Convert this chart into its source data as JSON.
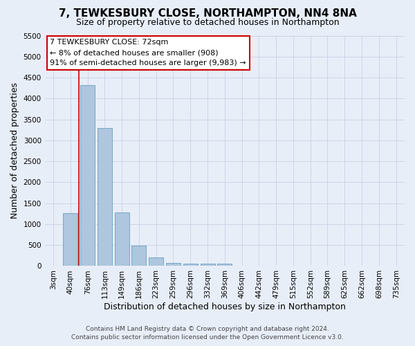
{
  "title": "7, TEWKESBURY CLOSE, NORTHAMPTON, NN4 8NA",
  "subtitle": "Size of property relative to detached houses in Northampton",
  "xlabel": "Distribution of detached houses by size in Northampton",
  "ylabel": "Number of detached properties",
  "categories": [
    "3sqm",
    "40sqm",
    "76sqm",
    "113sqm",
    "149sqm",
    "186sqm",
    "223sqm",
    "259sqm",
    "296sqm",
    "332sqm",
    "369sqm",
    "406sqm",
    "442sqm",
    "479sqm",
    "515sqm",
    "552sqm",
    "589sqm",
    "625sqm",
    "662sqm",
    "698sqm",
    "735sqm"
  ],
  "bar_values": [
    0,
    1270,
    4320,
    3290,
    1280,
    490,
    210,
    80,
    60,
    50,
    60,
    0,
    0,
    0,
    0,
    0,
    0,
    0,
    0,
    0,
    0
  ],
  "bar_color": "#aec6de",
  "bar_edge_color": "#6a9fc0",
  "grid_color": "#ccd6e8",
  "background_color": "#e8eef8",
  "annotation_box_color": "#ffffff",
  "annotation_border_color": "#cc0000",
  "property_line_color": "#cc0000",
  "property_line_x": 1.5,
  "annotation_text_line1": "7 TEWKESBURY CLOSE: 72sqm",
  "annotation_text_line2": "← 8% of detached houses are smaller (908)",
  "annotation_text_line3": "91% of semi-detached houses are larger (9,983) →",
  "ylim_max": 5500,
  "yticks": [
    0,
    500,
    1000,
    1500,
    2000,
    2500,
    3000,
    3500,
    4000,
    4500,
    5000,
    5500
  ],
  "footer_line1": "Contains HM Land Registry data © Crown copyright and database right 2024.",
  "footer_line2": "Contains public sector information licensed under the Open Government Licence v3.0.",
  "title_fontsize": 11,
  "subtitle_fontsize": 9,
  "axis_label_fontsize": 9,
  "tick_fontsize": 7.5,
  "annotation_fontsize": 8,
  "footer_fontsize": 6.5
}
